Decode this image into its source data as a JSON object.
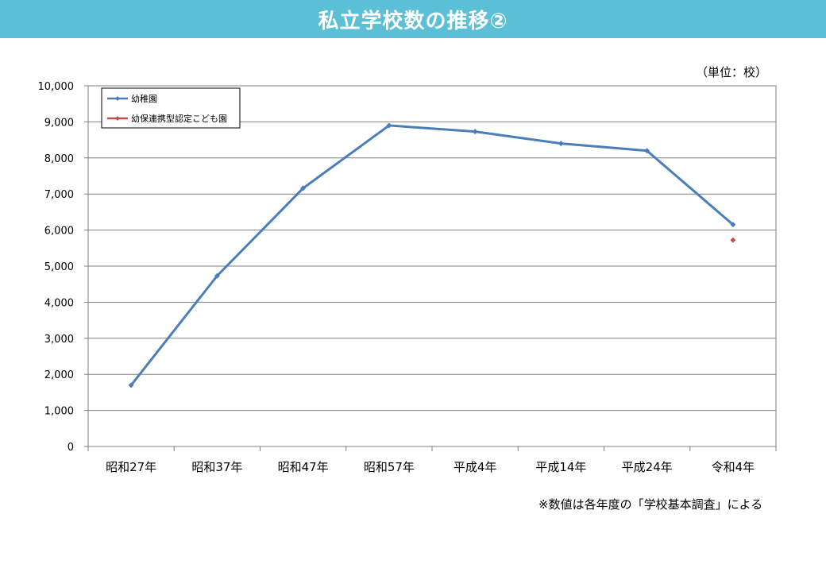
{
  "header": {
    "title": "私立学校数の推移②",
    "bg_color": "#5bbfd6"
  },
  "unit_label": "（単位：校）",
  "footnote": "※数値は各年度の「学校基本調査」による",
  "chart_data": {
    "type": "line",
    "categories": [
      "昭和27年",
      "昭和37年",
      "昭和47年",
      "昭和57年",
      "平成4年",
      "平成14年",
      "平成24年",
      "令和4年"
    ],
    "series": [
      {
        "name": "幼稚園",
        "color": "#4a7ebb",
        "values": [
          1700,
          4730,
          7160,
          8900,
          8730,
          8400,
          8200,
          6150
        ]
      },
      {
        "name": "幼保連携型認定こども園",
        "color": "#c0504d",
        "values": [
          null,
          null,
          null,
          null,
          null,
          null,
          null,
          5720
        ]
      }
    ],
    "ylim": [
      0,
      10000
    ],
    "yticks": [
      "0",
      "1,000",
      "2,000",
      "3,000",
      "4,000",
      "5,000",
      "6,000",
      "7,000",
      "8,000",
      "9,000",
      "10,000"
    ],
    "grid": true,
    "legend": "top-left"
  }
}
